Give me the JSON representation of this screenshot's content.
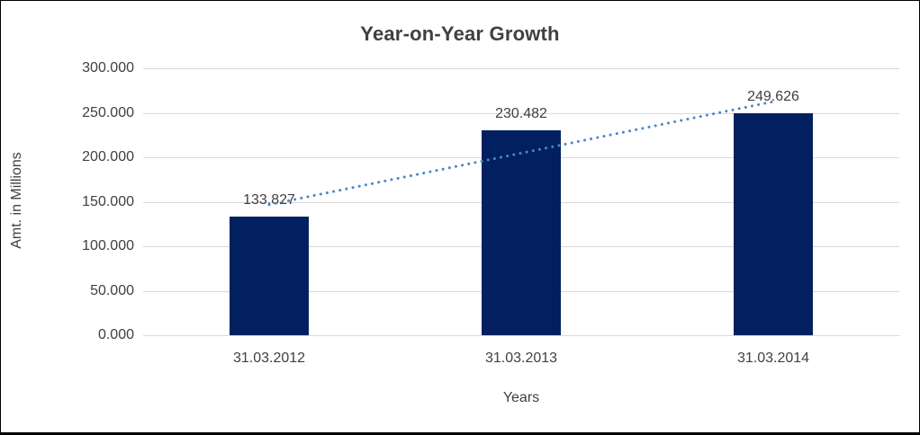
{
  "window": {
    "background": "#ffffff",
    "border_color": "#000000"
  },
  "chart_data": {
    "type": "bar",
    "title": "Year-on-Year Growth",
    "xlabel": "Years",
    "ylabel": "Amt. in Millions",
    "categories": [
      "31.03.2012",
      "31.03.2013",
      "31.03.2014"
    ],
    "values": [
      133.827,
      230.482,
      249.626
    ],
    "data_labels": [
      "133.827",
      "230.482",
      "249.626"
    ],
    "ylim": [
      0,
      300
    ],
    "ytick_step": 50,
    "ytick_labels": [
      "0.000",
      "50.000",
      "100.000",
      "150.000",
      "200.000",
      "250.000",
      "300.000"
    ],
    "grid": true,
    "legend_position": "none",
    "trendline": {
      "kind": "linear",
      "style": "dotted",
      "color": "#4a86c8"
    },
    "colors": {
      "bar": "#022060",
      "gridline": "#d9d9d9",
      "text": "#404040",
      "trendline": "#4a86c8"
    }
  }
}
